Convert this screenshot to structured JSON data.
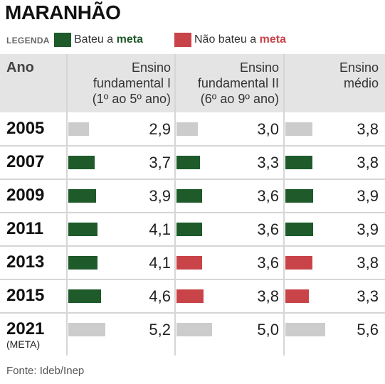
{
  "title": "MARANHÃO",
  "legend": {
    "label": "LEGENDA",
    "met_prefix": "Bateu a ",
    "met_bold": "meta",
    "notmet_prefix": "Não bateu a ",
    "notmet_bold": "meta"
  },
  "columns": {
    "year_header": "Ano",
    "col1_line1": "Ensino",
    "col1_line2": "fundamental I",
    "col1_line3": "(1º ao 5º ano)",
    "col2_line1": "Ensino",
    "col2_line2": "fundamental II",
    "col2_line3": "(6º ao 9º ano)",
    "col3_line1": "Ensino",
    "col3_line2": "médio"
  },
  "rows": [
    {
      "year": "2005",
      "sub": "",
      "vals": [
        "2,9",
        "3,0",
        "3,8"
      ]
    },
    {
      "year": "2007",
      "sub": "",
      "vals": [
        "3,7",
        "3,3",
        "3,8"
      ]
    },
    {
      "year": "2009",
      "sub": "",
      "vals": [
        "3,9",
        "3,6",
        "3,9"
      ]
    },
    {
      "year": "2011",
      "sub": "",
      "vals": [
        "4,1",
        "3,6",
        "3,9"
      ]
    },
    {
      "year": "2013",
      "sub": "",
      "vals": [
        "4,1",
        "3,6",
        "3,8"
      ]
    },
    {
      "year": "2015",
      "sub": "",
      "vals": [
        "4,6",
        "3,8",
        "3,3"
      ]
    },
    {
      "year": "2021",
      "sub": "(META)",
      "vals": [
        "5,2",
        "5,0",
        "5,6"
      ]
    }
  ],
  "footer": "Fonte: Ideb/Inep",
  "colors": {
    "met": "#1e5a2a",
    "not_met": "#c84448",
    "neutral": "#cccccc"
  },
  "chart_data": {
    "type": "table",
    "title": "MARANHÃO",
    "categories": [
      "2005",
      "2007",
      "2009",
      "2011",
      "2013",
      "2015",
      "2021 (META)"
    ],
    "series": [
      {
        "name": "Ensino fundamental I (1º ao 5º ano)",
        "values": [
          2.9,
          3.7,
          3.9,
          4.1,
          4.1,
          4.6,
          5.2
        ],
        "status": [
          "neutral",
          "met",
          "met",
          "met",
          "met",
          "met",
          "neutral"
        ]
      },
      {
        "name": "Ensino fundamental II (6º ao 9º ano)",
        "values": [
          3.0,
          3.3,
          3.6,
          3.6,
          3.6,
          3.8,
          5.0
        ],
        "status": [
          "neutral",
          "met",
          "met",
          "met",
          "not_met",
          "not_met",
          "neutral"
        ]
      },
      {
        "name": "Ensino médio",
        "values": [
          3.8,
          3.8,
          3.9,
          3.9,
          3.8,
          3.3,
          5.6
        ],
        "status": [
          "neutral",
          "met",
          "met",
          "met",
          "not_met",
          "not_met",
          "neutral"
        ]
      }
    ],
    "legend": [
      "Bateu a meta",
      "Não bateu a meta"
    ],
    "legend_position": "top"
  }
}
